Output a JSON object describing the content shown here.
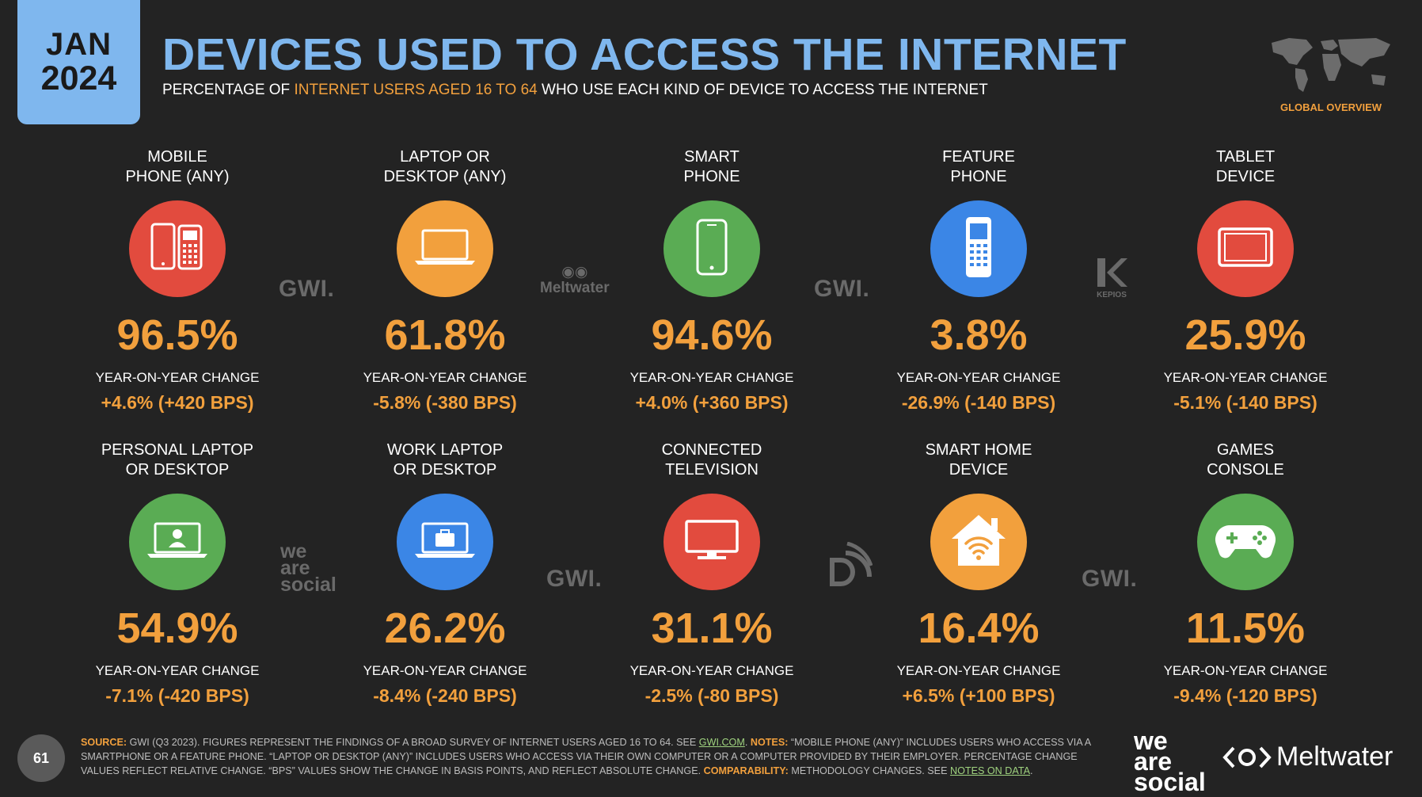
{
  "header": {
    "month": "JAN",
    "year": "2024",
    "title": "DEVICES USED TO ACCESS THE INTERNET",
    "subtitle_pre": "PERCENTAGE OF",
    "subtitle_highlight": "INTERNET USERS AGED 16 TO 64",
    "subtitle_post": "WHO USE EACH KIND OF DEVICE TO ACCESS THE INTERNET",
    "global_overview": "GLOBAL OVERVIEW"
  },
  "colors": {
    "blue": "#7fb7ee",
    "orange": "#f2a03d",
    "red": "#e24b3e",
    "green": "#5aac54",
    "device_blue": "#3b86e6",
    "bg": "#232323"
  },
  "cards": [
    {
      "label": "MOBILE\nPHONE (ANY)",
      "icon": "mobile-phones-icon",
      "color": "#e24b3e",
      "value": "96.5%",
      "yoy_label": "YEAR-ON-YEAR CHANGE",
      "change": "+4.6% (+420 BPS)"
    },
    {
      "label": "LAPTOP OR\nDESKTOP (ANY)",
      "icon": "laptop-icon",
      "color": "#f2a03d",
      "value": "61.8%",
      "yoy_label": "YEAR-ON-YEAR CHANGE",
      "change": "-5.8% (-380 BPS)"
    },
    {
      "label": "SMART\nPHONE",
      "icon": "smartphone-icon",
      "color": "#5aac54",
      "value": "94.6%",
      "yoy_label": "YEAR-ON-YEAR CHANGE",
      "change": "+4.0% (+360 BPS)"
    },
    {
      "label": "FEATURE\nPHONE",
      "icon": "feature-phone-icon",
      "color": "#3b86e6",
      "value": "3.8%",
      "yoy_label": "YEAR-ON-YEAR CHANGE",
      "change": "-26.9% (-140 BPS)"
    },
    {
      "label": "TABLET\nDEVICE",
      "icon": "tablet-icon",
      "color": "#e24b3e",
      "value": "25.9%",
      "yoy_label": "YEAR-ON-YEAR CHANGE",
      "change": "-5.1% (-140 BPS)"
    },
    {
      "label": "PERSONAL LAPTOP\nOR DESKTOP",
      "icon": "personal-laptop-icon",
      "color": "#5aac54",
      "value": "54.9%",
      "yoy_label": "YEAR-ON-YEAR CHANGE",
      "change": "-7.1% (-420 BPS)"
    },
    {
      "label": "WORK LAPTOP\nOR DESKTOP",
      "icon": "work-laptop-icon",
      "color": "#3b86e6",
      "value": "26.2%",
      "yoy_label": "YEAR-ON-YEAR CHANGE",
      "change": "-8.4% (-240 BPS)"
    },
    {
      "label": "CONNECTED\nTELEVISION",
      "icon": "television-icon",
      "color": "#e24b3e",
      "value": "31.1%",
      "yoy_label": "YEAR-ON-YEAR CHANGE",
      "change": "-2.5% (-80 BPS)"
    },
    {
      "label": "SMART HOME\nDEVICE",
      "icon": "smart-home-icon",
      "color": "#f2a03d",
      "value": "16.4%",
      "yoy_label": "YEAR-ON-YEAR CHANGE",
      "change": "+6.5% (+100 BPS)"
    },
    {
      "label": "GAMES\nCONSOLE",
      "icon": "gamepad-icon",
      "color": "#5aac54",
      "value": "11.5%",
      "yoy_label": "YEAR-ON-YEAR CHANGE",
      "change": "-9.4% (-120 BPS)"
    }
  ],
  "watermarks": {
    "gwi": "GWI.",
    "meltwater": "Meltwater",
    "we": "we",
    "are": "are",
    "social": "social",
    "kepios": "KEPIOS"
  },
  "footer": {
    "page_number": "61",
    "source_key": "SOURCE:",
    "source_text": "GWI (Q3 2023). FIGURES REPRESENT THE FINDINGS OF A BROAD SURVEY OF INTERNET USERS AGED 16 TO 64. SEE",
    "source_link": "GWI.COM",
    "notes_key": "NOTES:",
    "notes_text": "“MOBILE PHONE (ANY)” INCLUDES USERS WHO ACCESS VIA A SMARTPHONE OR A FEATURE PHONE. “LAPTOP OR DESKTOP (ANY)” INCLUDES USERS WHO ACCESS VIA THEIR OWN COMPUTER OR A COMPUTER PROVIDED BY THEIR EMPLOYER. PERCENTAGE CHANGE VALUES REFLECT RELATIVE CHANGE. “BPS” VALUES SHOW THE CHANGE IN BASIS POINTS, AND REFLECT ABSOLUTE CHANGE.",
    "comparability_key": "COMPARABILITY:",
    "comparability_text": "METHODOLOGY CHANGES. SEE",
    "notes_link": "NOTES ON DATA",
    "logo_we": "we",
    "logo_are": "are",
    "logo_social": "social",
    "logo_meltwater": "Meltwater"
  }
}
